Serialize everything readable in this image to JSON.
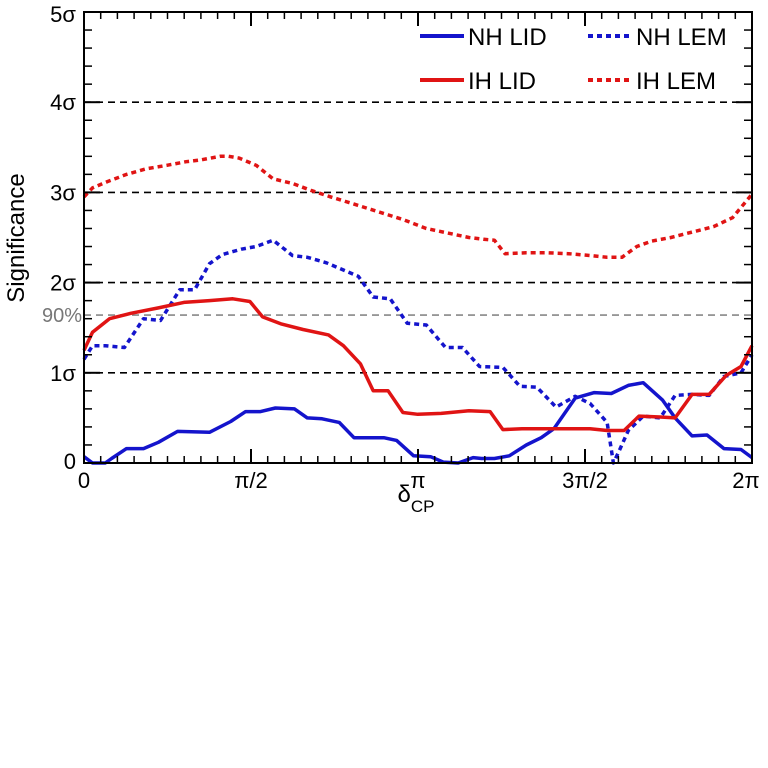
{
  "chart_data": {
    "type": "line",
    "xlabel": "δ",
    "xlabel_sub": "CP",
    "ylabel": "Significance",
    "xlim": [
      0,
      6.2832
    ],
    "ylim": [
      0,
      5
    ],
    "x_ticks": [
      {
        "value": 0,
        "label": "0"
      },
      {
        "value": 1.5708,
        "label": "π/2"
      },
      {
        "value": 3.1416,
        "label": "π"
      },
      {
        "value": 4.7124,
        "label": "3π/2"
      },
      {
        "value": 6.2832,
        "label": "2π"
      }
    ],
    "y_ticks": [
      {
        "value": 0,
        "label": "0"
      },
      {
        "value": 1,
        "label": "1σ"
      },
      {
        "value": 2,
        "label": "2σ"
      },
      {
        "value": 3,
        "label": "3σ"
      },
      {
        "value": 4,
        "label": "4σ"
      },
      {
        "value": 5,
        "label": "5σ"
      }
    ],
    "reference_lines": [
      {
        "y": 1,
        "label": ""
      },
      {
        "y": 1.64,
        "label": "90%"
      },
      {
        "y": 2,
        "label": ""
      },
      {
        "y": 3,
        "label": ""
      },
      {
        "y": 4,
        "label": ""
      }
    ],
    "legend_position": "top-right",
    "series": [
      {
        "name": "NH LID",
        "color": "#1414cc",
        "style": "solid",
        "x": [
          0,
          0.08,
          0.2,
          0.26,
          0.4,
          0.56,
          0.7,
          0.88,
          1.18,
          1.38,
          1.52,
          1.66,
          1.8,
          1.98,
          2.1,
          2.24,
          2.4,
          2.54,
          2.68,
          2.82,
          2.94,
          3.1,
          3.26,
          3.38,
          3.52,
          3.66,
          3.74,
          3.86,
          4.0,
          4.16,
          4.3,
          4.42,
          4.62,
          4.8,
          4.96,
          5.12,
          5.26,
          5.44,
          5.56,
          5.72,
          5.86,
          6.02,
          6.18,
          6.2832
        ],
        "values": [
          0.07,
          0.0,
          0.0,
          0.05,
          0.16,
          0.16,
          0.23,
          0.35,
          0.34,
          0.46,
          0.57,
          0.57,
          0.61,
          0.6,
          0.5,
          0.49,
          0.45,
          0.28,
          0.28,
          0.28,
          0.25,
          0.08,
          0.07,
          0.01,
          0.0,
          0.06,
          0.05,
          0.05,
          0.08,
          0.2,
          0.28,
          0.38,
          0.72,
          0.78,
          0.77,
          0.86,
          0.89,
          0.7,
          0.5,
          0.3,
          0.31,
          0.16,
          0.15,
          0.06
        ]
      },
      {
        "name": "NH LEM",
        "color": "#1414cc",
        "style": "dotted",
        "x": [
          0,
          0.08,
          0.2,
          0.38,
          0.56,
          0.72,
          0.9,
          1.04,
          1.18,
          1.3,
          1.48,
          1.62,
          1.78,
          1.96,
          2.1,
          2.28,
          2.44,
          2.58,
          2.72,
          2.88,
          3.04,
          3.22,
          3.4,
          3.56,
          3.72,
          3.94,
          4.1,
          4.26,
          4.44,
          4.62,
          4.76,
          4.92,
          4.98,
          5.04,
          5.12,
          5.26,
          5.42,
          5.56,
          5.72,
          5.88,
          6.02,
          6.18,
          6.2832
        ],
        "values": [
          1.15,
          1.3,
          1.3,
          1.28,
          1.6,
          1.58,
          1.92,
          1.92,
          2.21,
          2.31,
          2.37,
          2.4,
          2.47,
          2.3,
          2.28,
          2.22,
          2.14,
          2.07,
          1.84,
          1.82,
          1.55,
          1.53,
          1.28,
          1.28,
          1.07,
          1.06,
          0.85,
          0.84,
          0.62,
          0.74,
          0.66,
          0.45,
          0.0,
          0.15,
          0.36,
          0.52,
          0.5,
          0.75,
          0.76,
          0.75,
          0.96,
          1.0,
          1.2
        ]
      },
      {
        "name": "IH LID",
        "color": "#e01414",
        "style": "solid",
        "x": [
          0,
          0.08,
          0.24,
          0.44,
          0.7,
          0.94,
          1.18,
          1.4,
          1.56,
          1.68,
          1.86,
          2.06,
          2.3,
          2.44,
          2.6,
          2.72,
          2.86,
          3.0,
          3.14,
          3.36,
          3.62,
          3.82,
          3.94,
          4.12,
          4.32,
          4.54,
          4.76,
          4.92,
          5.08,
          5.22,
          5.42,
          5.56,
          5.72,
          5.88,
          6.04,
          6.18,
          6.2832
        ],
        "values": [
          1.25,
          1.45,
          1.6,
          1.66,
          1.72,
          1.78,
          1.8,
          1.82,
          1.79,
          1.62,
          1.54,
          1.48,
          1.42,
          1.3,
          1.1,
          0.8,
          0.8,
          0.56,
          0.54,
          0.55,
          0.58,
          0.57,
          0.37,
          0.38,
          0.38,
          0.38,
          0.38,
          0.36,
          0.36,
          0.52,
          0.51,
          0.5,
          0.76,
          0.76,
          0.97,
          1.07,
          1.3
        ]
      },
      {
        "name": "IH LEM",
        "color": "#e01414",
        "style": "dotted",
        "x": [
          0,
          0.08,
          0.22,
          0.4,
          0.58,
          0.78,
          0.96,
          1.1,
          1.28,
          1.36,
          1.46,
          1.62,
          1.78,
          1.96,
          2.14,
          2.32,
          2.54,
          2.78,
          3.0,
          3.22,
          3.42,
          3.62,
          3.76,
          3.86,
          3.96,
          4.16,
          4.36,
          4.56,
          4.76,
          4.92,
          5.06,
          5.2,
          5.34,
          5.52,
          5.72,
          5.92,
          6.1,
          6.2832
        ],
        "values": [
          2.95,
          3.05,
          3.12,
          3.2,
          3.26,
          3.3,
          3.34,
          3.36,
          3.4,
          3.4,
          3.38,
          3.3,
          3.15,
          3.1,
          3.02,
          2.95,
          2.87,
          2.78,
          2.7,
          2.6,
          2.55,
          2.5,
          2.48,
          2.47,
          2.32,
          2.33,
          2.33,
          2.32,
          2.3,
          2.28,
          2.28,
          2.4,
          2.46,
          2.5,
          2.56,
          2.62,
          2.72,
          2.98
        ]
      }
    ]
  }
}
